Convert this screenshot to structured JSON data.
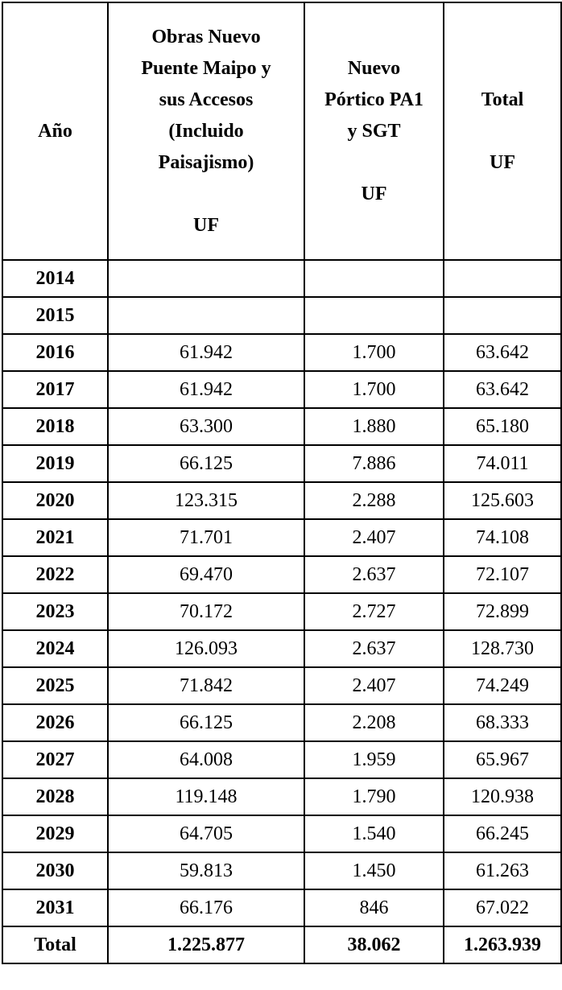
{
  "headers": {
    "year": "Año",
    "obras": {
      "lines": [
        "Obras Nuevo",
        "Puente Maipo y",
        "sus Accesos",
        "(Incluido",
        "Paisajismo)"
      ],
      "unit": "UF"
    },
    "portico": {
      "lines": [
        "Nuevo",
        "Pórtico PA1",
        "y SGT"
      ],
      "unit": "UF"
    },
    "total": {
      "lines": [
        "Total"
      ],
      "unit": "UF"
    }
  },
  "rows": [
    {
      "year": "2014",
      "obras": "",
      "portico": "",
      "total": ""
    },
    {
      "year": "2015",
      "obras": "",
      "portico": "",
      "total": ""
    },
    {
      "year": "2016",
      "obras": "61.942",
      "portico": "1.700",
      "total": "63.642"
    },
    {
      "year": "2017",
      "obras": "61.942",
      "portico": "1.700",
      "total": "63.642"
    },
    {
      "year": "2018",
      "obras": "63.300",
      "portico": "1.880",
      "total": "65.180"
    },
    {
      "year": "2019",
      "obras": "66.125",
      "portico": "7.886",
      "total": "74.011"
    },
    {
      "year": "2020",
      "obras": "123.315",
      "portico": "2.288",
      "total": "125.603"
    },
    {
      "year": "2021",
      "obras": "71.701",
      "portico": "2.407",
      "total": "74.108"
    },
    {
      "year": "2022",
      "obras": "69.470",
      "portico": "2.637",
      "total": "72.107"
    },
    {
      "year": "2023",
      "obras": "70.172",
      "portico": "2.727",
      "total": "72.899"
    },
    {
      "year": "2024",
      "obras": "126.093",
      "portico": "2.637",
      "total": "128.730"
    },
    {
      "year": "2025",
      "obras": "71.842",
      "portico": "2.407",
      "total": "74.249"
    },
    {
      "year": "2026",
      "obras": "66.125",
      "portico": "2.208",
      "total": "68.333"
    },
    {
      "year": "2027",
      "obras": "64.008",
      "portico": "1.959",
      "total": "65.967"
    },
    {
      "year": "2028",
      "obras": "119.148",
      "portico": "1.790",
      "total": "120.938"
    },
    {
      "year": "2029",
      "obras": "64.705",
      "portico": "1.540",
      "total": "66.245"
    },
    {
      "year": "2030",
      "obras": "59.813",
      "portico": "1.450",
      "total": "61.263"
    },
    {
      "year": "2031",
      "obras": "66.176",
      "portico": "846",
      "total": "67.022"
    }
  ],
  "totals": {
    "label": "Total",
    "obras": "1.225.877",
    "portico": "38.062",
    "total": "1.263.939"
  }
}
